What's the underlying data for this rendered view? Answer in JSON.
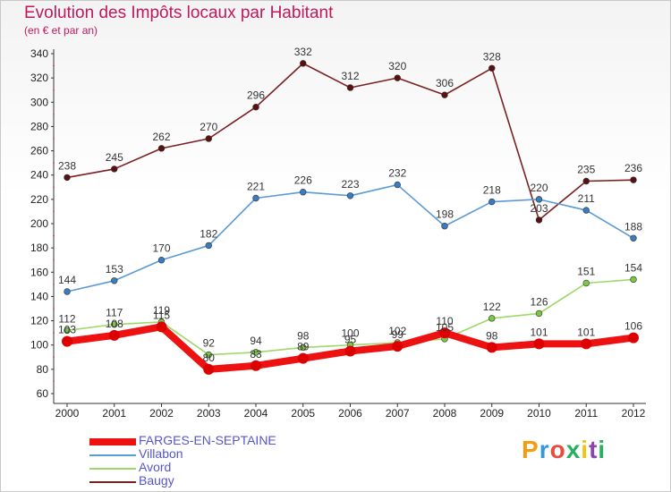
{
  "header": {
    "title": "Evolution des Impôts locaux par Habitant",
    "subtitle": "(en € et par an)"
  },
  "logo": {
    "text": "Proxiti",
    "letters": [
      "P",
      "r",
      "o",
      "x",
      "i",
      "t",
      "i"
    ],
    "colors": [
      "#f39c12",
      "#3498db",
      "#e74c3c",
      "#27ae60",
      "#f1c40f",
      "#8e44ad",
      "#27ae60"
    ]
  },
  "chart_data": {
    "type": "line",
    "title": "Evolution des Impôts locaux par Habitant",
    "subtitle": "(en € et par an)",
    "xlabel": "",
    "ylabel": "",
    "categories": [
      "2000",
      "2001",
      "2002",
      "2003",
      "2004",
      "2005",
      "2006",
      "2007",
      "2008",
      "2009",
      "2010",
      "2011",
      "2012"
    ],
    "ylim": [
      60,
      340
    ],
    "yticks": [
      60,
      80,
      100,
      120,
      140,
      160,
      180,
      200,
      220,
      240,
      260,
      280,
      300,
      320,
      340
    ],
    "grid": false,
    "legend_position": "bottom-left",
    "series": [
      {
        "name": "Baugy",
        "color": "#7b2020",
        "dot": "#5a1010",
        "values": [
          238,
          245,
          262,
          270,
          296,
          332,
          312,
          320,
          306,
          328,
          203,
          235,
          236
        ]
      },
      {
        "name": "Villabon",
        "color": "#5b9bd5",
        "dot": "#3a7cc0",
        "values": [
          144,
          153,
          170,
          182,
          221,
          226,
          223,
          232,
          198,
          218,
          220,
          211,
          188
        ]
      },
      {
        "name": "Avord",
        "color": "#9ed86a",
        "dot": "#7cc845",
        "values": [
          112,
          117,
          119,
          92,
          94,
          98,
          100,
          102,
          105,
          122,
          126,
          151,
          154
        ]
      },
      {
        "name": "FARGES-EN-SEPTAINE",
        "color": "#ee1111",
        "dot": "#dd0000",
        "values": [
          103,
          108,
          115,
          80,
          83,
          89,
          95,
          99,
          110,
          98,
          101,
          101,
          106
        ]
      }
    ],
    "legend_order": [
      "FARGES-EN-SEPTAINE",
      "Villabon",
      "Avord",
      "Baugy"
    ]
  }
}
